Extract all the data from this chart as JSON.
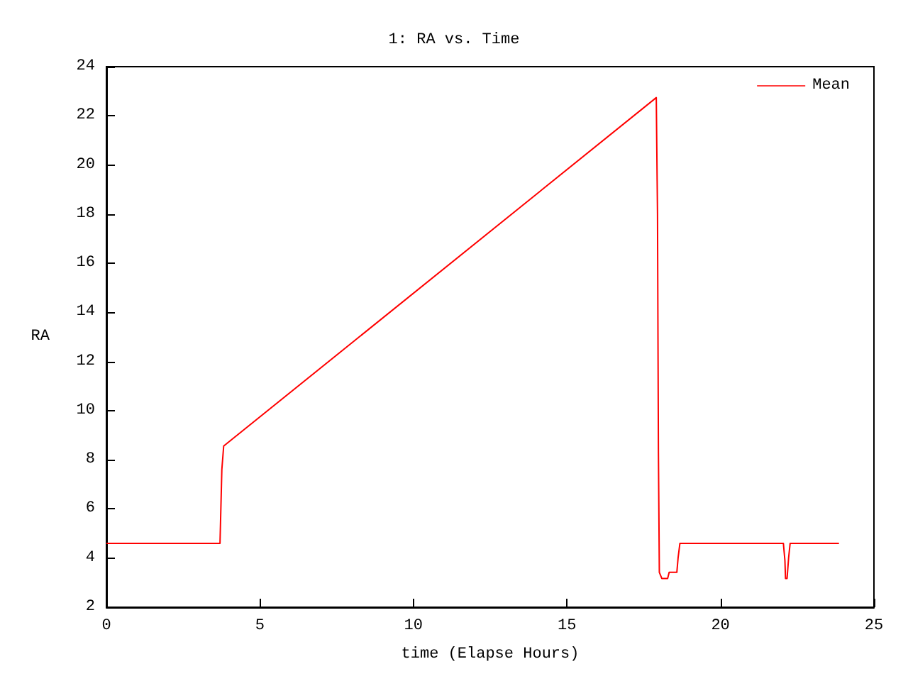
{
  "chart_data": {
    "type": "line",
    "title": "1: RA vs. Time",
    "xlabel": "time (Elapse Hours)",
    "ylabel": "RA",
    "xlim": [
      0,
      25
    ],
    "xticks": [
      0,
      5,
      10,
      15,
      20,
      25
    ],
    "ylim": [
      2,
      24
    ],
    "yticks": [
      2,
      4,
      6,
      8,
      10,
      12,
      14,
      16,
      18,
      20,
      22,
      24
    ],
    "grid": false,
    "legend": "top right",
    "marker": "none",
    "line_style": "solid",
    "series": [
      {
        "name": "Mean",
        "color": "#ff0000",
        "x": [
          0,
          3.7,
          3.72,
          3.76,
          3.82,
          17.91,
          17.95,
          17.98,
          18.01,
          18.09,
          18.28,
          18.33,
          18.58,
          18.62,
          18.68,
          22.05,
          22.1,
          22.12,
          22.17,
          22.22,
          22.27,
          23.86
        ],
        "values": [
          4.6,
          4.6,
          5.6,
          7.6,
          8.56,
          22.74,
          18,
          8.3,
          3.42,
          3.17,
          3.17,
          3.42,
          3.42,
          4.0,
          4.6,
          4.6,
          3.9,
          3.17,
          3.17,
          4.0,
          4.6,
          4.6
        ]
      }
    ]
  }
}
